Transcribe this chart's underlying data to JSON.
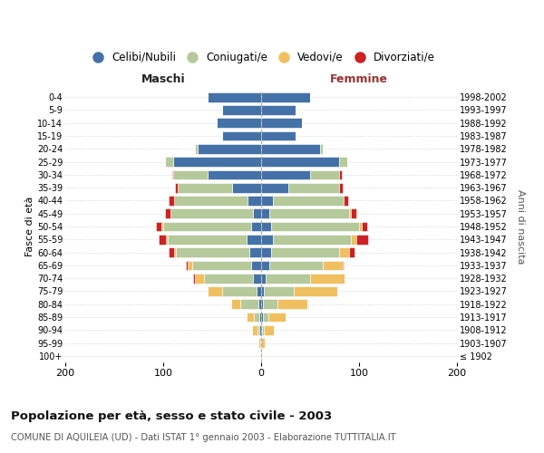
{
  "age_groups": [
    "100+",
    "95-99",
    "90-94",
    "85-89",
    "80-84",
    "75-79",
    "70-74",
    "65-69",
    "60-64",
    "55-59",
    "50-54",
    "45-49",
    "40-44",
    "35-39",
    "30-34",
    "25-29",
    "20-24",
    "15-19",
    "10-14",
    "5-9",
    "0-4"
  ],
  "birth_years": [
    "≤ 1902",
    "1903-1907",
    "1908-1912",
    "1913-1917",
    "1918-1922",
    "1923-1927",
    "1928-1932",
    "1933-1937",
    "1938-1942",
    "1943-1947",
    "1948-1952",
    "1953-1957",
    "1958-1962",
    "1963-1967",
    "1968-1972",
    "1973-1977",
    "1978-1982",
    "1983-1987",
    "1988-1992",
    "1993-1997",
    "1998-2002"
  ],
  "males": {
    "celibi": [
      0,
      1,
      2,
      2,
      3,
      5,
      8,
      10,
      12,
      15,
      10,
      8,
      14,
      30,
      55,
      90,
      65,
      40,
      45,
      40,
      55
    ],
    "coniugati": [
      0,
      0,
      2,
      5,
      18,
      35,
      50,
      60,
      75,
      80,
      90,
      85,
      75,
      55,
      35,
      8,
      3,
      0,
      0,
      0,
      0
    ],
    "vedovi": [
      0,
      2,
      5,
      8,
      10,
      15,
      10,
      5,
      2,
      2,
      2,
      0,
      0,
      0,
      0,
      0,
      0,
      0,
      0,
      0,
      0
    ],
    "divorziati": [
      0,
      0,
      0,
      0,
      0,
      0,
      1,
      2,
      5,
      8,
      5,
      5,
      5,
      3,
      1,
      0,
      0,
      0,
      0,
      0,
      0
    ]
  },
  "females": {
    "nubili": [
      0,
      0,
      1,
      2,
      2,
      3,
      5,
      8,
      10,
      12,
      10,
      8,
      12,
      28,
      50,
      80,
      60,
      35,
      42,
      35,
      50
    ],
    "coniugate": [
      0,
      0,
      2,
      5,
      15,
      30,
      45,
      55,
      70,
      80,
      90,
      82,
      72,
      52,
      30,
      8,
      3,
      0,
      0,
      0,
      0
    ],
    "vedove": [
      1,
      4,
      10,
      18,
      30,
      45,
      35,
      20,
      10,
      5,
      3,
      2,
      0,
      0,
      0,
      0,
      0,
      0,
      0,
      0,
      0
    ],
    "divorziate": [
      0,
      0,
      0,
      0,
      0,
      0,
      0,
      1,
      5,
      12,
      5,
      5,
      5,
      3,
      2,
      0,
      0,
      0,
      0,
      0,
      0
    ]
  },
  "colors": {
    "celibi": "#4472a8",
    "coniugati": "#b5c99a",
    "vedovi": "#f0c060",
    "divorziati": "#cc2222"
  },
  "title": "Popolazione per età, sesso e stato civile - 2003",
  "subtitle": "COMUNE DI AQUILEIA (UD) - Dati ISTAT 1° gennaio 2003 - Elaborazione TUTTITALIA.IT",
  "xlabel_left": "Maschi",
  "xlabel_right": "Femmine",
  "ylabel_left": "Fasce di età",
  "ylabel_right": "Anni di nascita",
  "xlim": 200,
  "background_color": "#ffffff",
  "grid_color": "#cccccc"
}
